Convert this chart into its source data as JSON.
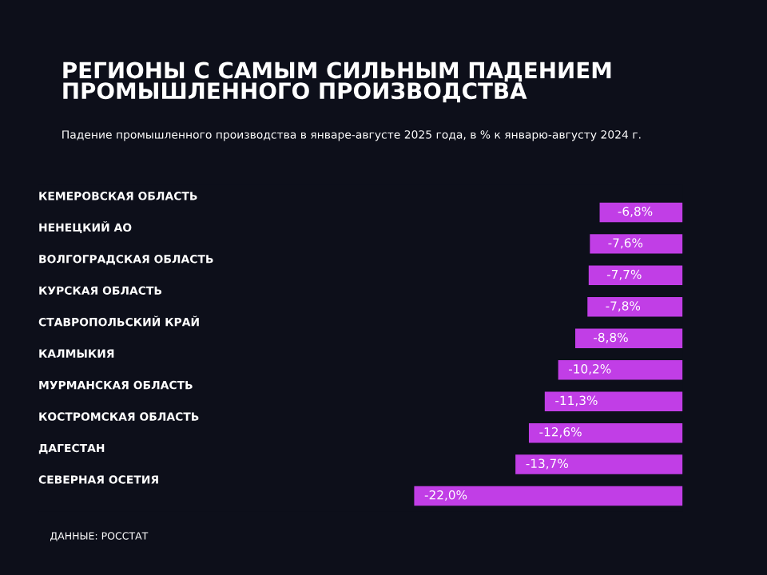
{
  "chart_data": {
    "type": "bar",
    "orientation": "horizontal",
    "title": "РЕГИОНЫ С САМЫМ СИЛЬНЫМ ПАДЕНИЕМ\nПРОМЫШЛЕННОГО ПРОИЗВОДСТВА",
    "subtitle": "Падение промышленного производства в январе-августе 2025 года, в % к январю-августу 2024 г.",
    "categories": [
      "КЕМЕРОВСКАЯ ОБЛАСТЬ",
      "НЕНЕЦКИЙ АО",
      "ВОЛГОГРАДСКАЯ ОБЛАСТЬ",
      "КУРСКАЯ ОБЛАСТЬ",
      "СТАВРОПОЛЬСКИЙ КРАЙ",
      "КАЛМЫКИЯ",
      "МУРМАНСКАЯ ОБЛАСТЬ",
      "КОСТРОМСКАЯ ОБЛАСТЬ",
      "ДАГЕСТАН",
      "СЕВЕРНАЯ ОСЕТИЯ"
    ],
    "values": [
      -6.8,
      -7.6,
      -7.7,
      -7.8,
      -8.8,
      -10.2,
      -11.3,
      -12.6,
      -13.7,
      -22.0
    ],
    "value_labels": [
      "-6,8%",
      "-7,6%",
      "-7,7%",
      "-7,8%",
      "-8,8%",
      "-10,2%",
      "-11,3%",
      "-12,6%",
      "-13,7%",
      "-22,0%"
    ],
    "color": "#c13ee6",
    "annotations": [
      "ДАННЫЕ: РОССТАТ"
    ]
  }
}
